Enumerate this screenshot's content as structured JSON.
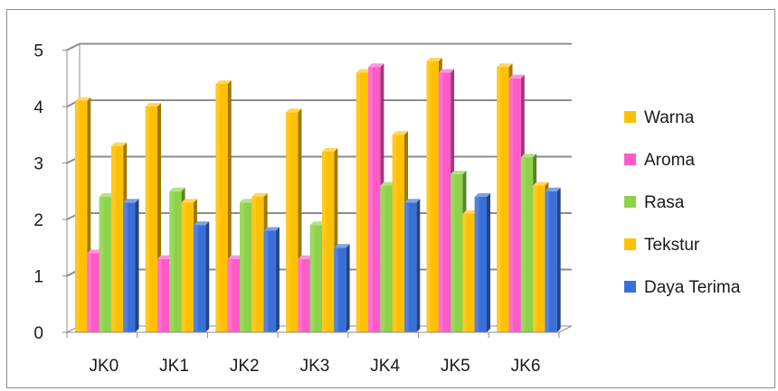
{
  "chart_data": {
    "type": "bar",
    "subtype": "3d-clustered",
    "categories": [
      "JK0",
      "JK1",
      "JK2",
      "JK3",
      "JK4",
      "JK5",
      "JK6"
    ],
    "series": [
      {
        "name": "Warna",
        "color": "#FFC000",
        "values": [
          4.1,
          4.0,
          4.4,
          3.9,
          4.6,
          4.8,
          4.7
        ]
      },
      {
        "name": "Aroma",
        "color": "#FF5BC8",
        "values": [
          1.4,
          1.3,
          1.3,
          1.3,
          4.7,
          4.6,
          4.5
        ]
      },
      {
        "name": "Rasa",
        "color": "#8DD248",
        "values": [
          2.4,
          2.5,
          2.3,
          1.9,
          2.6,
          2.8,
          3.1
        ]
      },
      {
        "name": "Tekstur",
        "color": "#FFC000",
        "values": [
          3.3,
          2.3,
          2.4,
          3.2,
          3.5,
          2.1,
          2.6
        ]
      },
      {
        "name": "Daya Terima",
        "color": "#3A6FD8",
        "values": [
          2.3,
          1.9,
          1.8,
          1.5,
          2.3,
          2.4,
          2.5
        ]
      }
    ],
    "yticks": [
      "0",
      "1",
      "2",
      "3",
      "4",
      "5"
    ],
    "ylim": [
      0,
      5
    ],
    "title": "",
    "xlabel": "",
    "ylabel": "",
    "grid": true,
    "legend_position": "right"
  }
}
